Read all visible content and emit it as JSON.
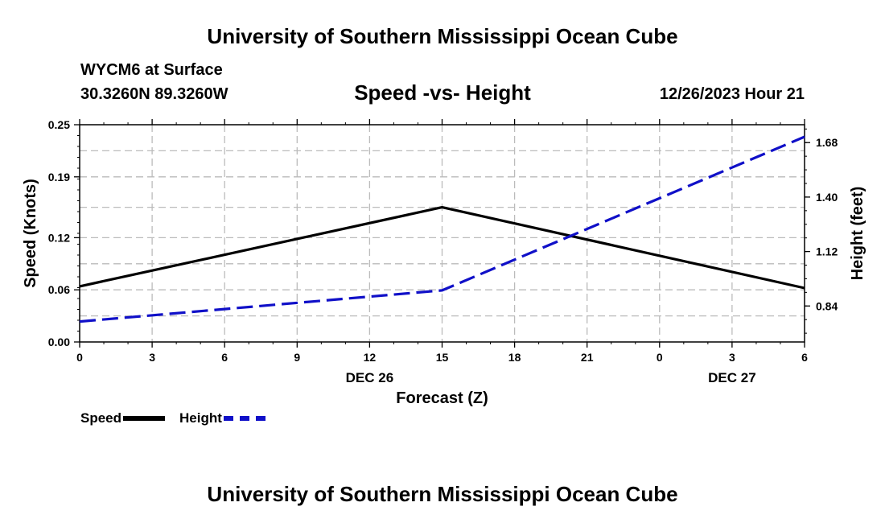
{
  "header": {
    "title_top": "University of Southern Mississippi Ocean Cube",
    "station": "WYCM6 at Surface",
    "coords": "30.3260N  89.3260W",
    "chart_title": "Speed -vs- Height",
    "datetime": "12/26/2023 Hour 21",
    "title_bottom": "University of Southern Mississippi Ocean Cube"
  },
  "legend": {
    "speed_label": "Speed",
    "height_label": "Height"
  },
  "colors": {
    "speed": "#000000",
    "height": "#1010c8",
    "grid": "#bbbbbb"
  },
  "chart_data": {
    "type": "line",
    "title": "Speed -vs- Height",
    "xlabel": "Forecast (Z)",
    "ylabel": "Speed (Knots)",
    "y2label": "Height (feet)",
    "x": [
      0,
      3,
      6,
      9,
      12,
      15,
      18,
      21,
      24,
      27,
      30
    ],
    "x_tick_labels": [
      "0",
      "3",
      "6",
      "9",
      "12",
      "15",
      "18",
      "21",
      "0",
      "3",
      "6"
    ],
    "date_labels": [
      {
        "label": "DEC 26",
        "at_x": 12
      },
      {
        "label": "DEC 27",
        "at_x": 27
      }
    ],
    "ylim": [
      0,
      0.25
    ],
    "y_ticks": [
      0.0,
      0.06,
      0.12,
      0.19,
      0.25
    ],
    "y_tick_labels": [
      "0.00",
      "0.06",
      "0.12",
      "0.19",
      "0.25"
    ],
    "y2lim": [
      0.655,
      1.772
    ],
    "y2_ticks": [
      0.84,
      1.12,
      1.4,
      1.68
    ],
    "y2_tick_labels": [
      "0.84",
      "1.12",
      "1.40",
      "1.68"
    ],
    "grid": true,
    "series": [
      {
        "name": "Speed",
        "axis": "left",
        "style": "solid",
        "points": [
          [
            0,
            0.064
          ],
          [
            15,
            0.155
          ],
          [
            30,
            0.062
          ]
        ]
      },
      {
        "name": "Height",
        "axis": "right",
        "style": "dashed",
        "points": [
          [
            0,
            0.76
          ],
          [
            15,
            0.92
          ],
          [
            30,
            1.71
          ]
        ]
      }
    ]
  }
}
